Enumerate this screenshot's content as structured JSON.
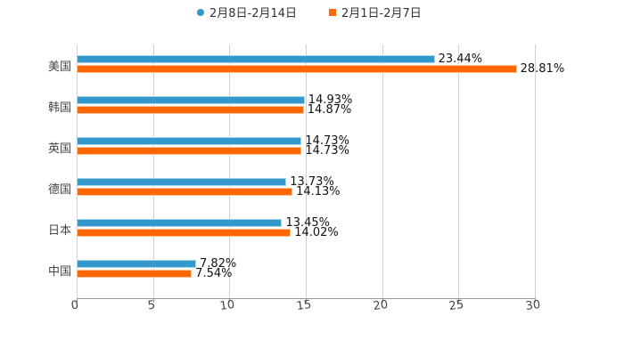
{
  "chart_data": {
    "type": "bar",
    "orientation": "horizontal",
    "title": "",
    "xlabel": "",
    "ylabel": "",
    "xlim": [
      0,
      30
    ],
    "x_ticks": [
      "0",
      "5",
      "10",
      "15",
      "20",
      "25",
      "30"
    ],
    "grid": true,
    "legend_position": "top",
    "categories": [
      "美国",
      "韩国",
      "英国",
      "德国",
      "日本",
      "中国"
    ],
    "series": [
      {
        "name": "2月8日-2月14日",
        "color": "#3399cc",
        "values": [
          23.44,
          14.93,
          14.73,
          13.73,
          13.45,
          7.82
        ],
        "labels": [
          "23.44%",
          "14.93%",
          "14.73%",
          "13.73%",
          "13.45%",
          "7.82%"
        ]
      },
      {
        "name": "2月1日-2月7日",
        "color": "#ff6600",
        "values": [
          28.81,
          14.87,
          14.73,
          14.13,
          14.02,
          7.54
        ],
        "labels": [
          "28.81%",
          "14.87%",
          "14.73%",
          "14.13%",
          "14.02%",
          "7.54%"
        ]
      }
    ]
  }
}
